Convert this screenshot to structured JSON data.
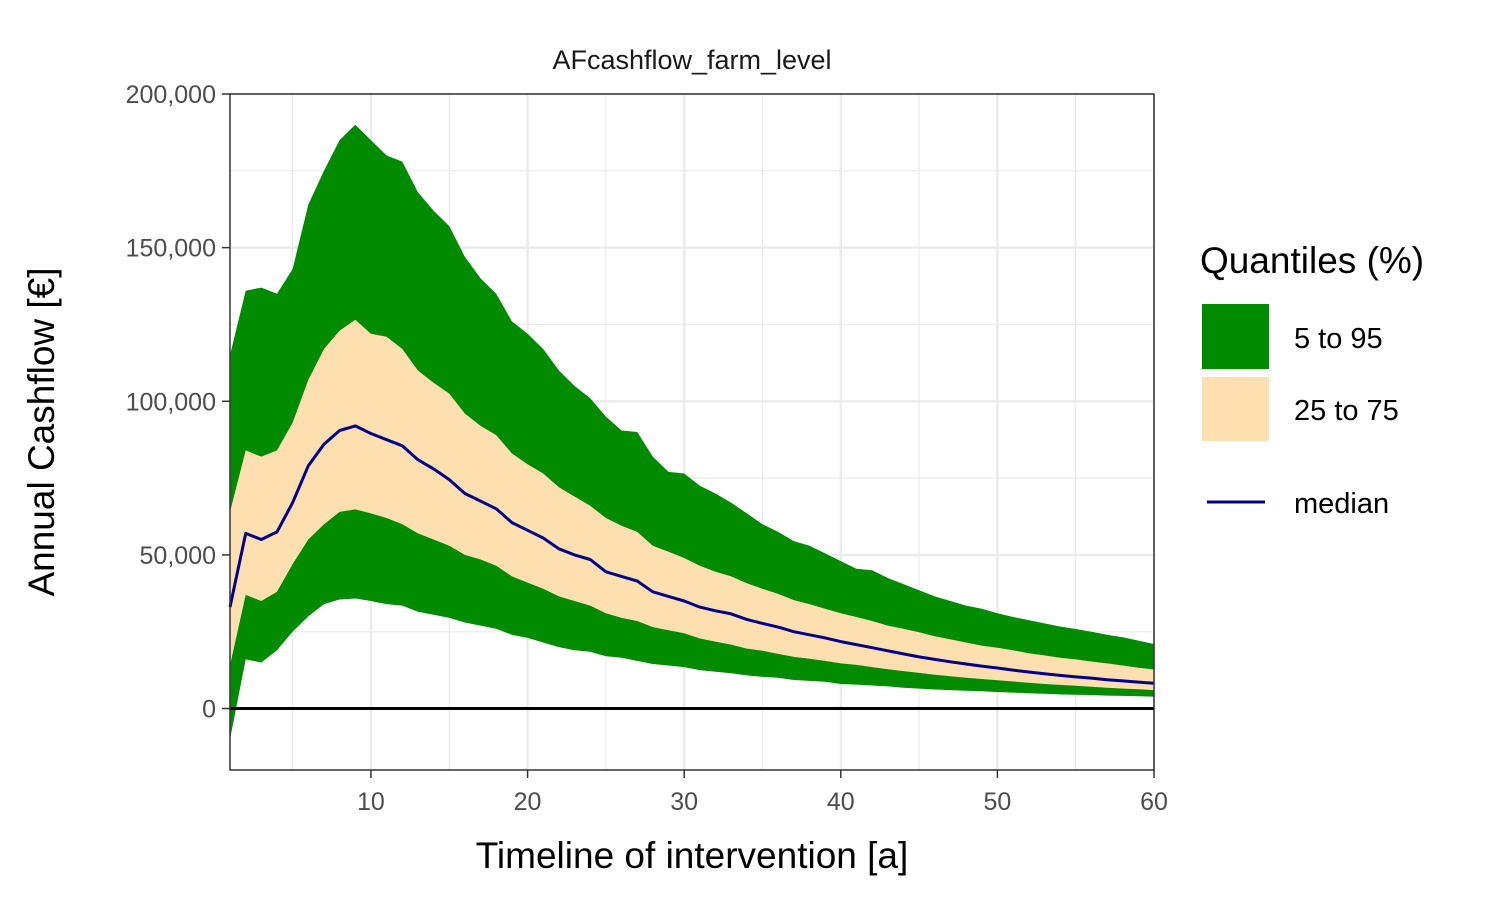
{
  "chart_data": {
    "type": "area",
    "title": "AFcashflow_farm_level",
    "xlabel": "Timeline of intervention [a]",
    "ylabel": "Annual Cashflow [€]",
    "xlim": [
      1,
      60
    ],
    "ylim": [
      -20000,
      200000
    ],
    "x_ticks": [
      10,
      20,
      30,
      40,
      50,
      60
    ],
    "x_tick_labels": [
      "10",
      "20",
      "30",
      "40",
      "50",
      "60"
    ],
    "y_ticks": [
      0,
      50000,
      100000,
      150000,
      200000
    ],
    "y_tick_labels": [
      "0",
      "50,000",
      "100,000",
      "150,000",
      "200,000"
    ],
    "grid": true,
    "reference_line_y": 0,
    "legend": {
      "title": "Quantiles (%)",
      "position": "right",
      "entries": [
        {
          "label": "5 to 95",
          "color": "#008B00",
          "kind": "fill"
        },
        {
          "label": "25 to 75",
          "color": "#FDDFB0",
          "kind": "fill"
        },
        {
          "label": "median",
          "color": "#00008B",
          "kind": "line"
        }
      ]
    },
    "x": [
      1,
      2,
      3,
      4,
      5,
      6,
      7,
      8,
      9,
      10,
      11,
      12,
      13,
      14,
      15,
      16,
      17,
      18,
      19,
      20,
      21,
      22,
      23,
      24,
      25,
      26,
      27,
      28,
      29,
      30,
      31,
      32,
      33,
      34,
      35,
      36,
      37,
      38,
      39,
      40,
      41,
      42,
      43,
      44,
      45,
      46,
      47,
      48,
      49,
      50,
      51,
      52,
      53,
      54,
      55,
      56,
      57,
      58,
      59,
      60
    ],
    "series": [
      {
        "name": "5 to 95",
        "kind": "band",
        "color": "#008B00",
        "low": [
          -10000,
          16000,
          15000,
          19000,
          25000,
          30000,
          34000,
          35500,
          35800,
          35000,
          34000,
          33500,
          31500,
          30500,
          29500,
          28000,
          27000,
          26000,
          24000,
          23000,
          21500,
          20000,
          19000,
          18500,
          17000,
          16500,
          15500,
          14500,
          14000,
          13500,
          12500,
          12000,
          11500,
          10800,
          10300,
          10000,
          9300,
          9000,
          8700,
          8000,
          7800,
          7500,
          7200,
          6800,
          6500,
          6200,
          6000,
          5800,
          5600,
          5400,
          5200,
          5000,
          4800,
          4600,
          4500,
          4400,
          4200,
          4100,
          4000,
          3900
        ],
        "high": [
          115000,
          136000,
          137000,
          135000,
          143000,
          164000,
          175000,
          185000,
          190000,
          185000,
          180000,
          178000,
          168000,
          162000,
          157000,
          147000,
          140000,
          135000,
          126000,
          122000,
          117000,
          110000,
          105000,
          101000,
          95000,
          90500,
          90000,
          82000,
          77000,
          76500,
          72500,
          70000,
          67000,
          63500,
          60000,
          57500,
          54500,
          53000,
          50500,
          48000,
          45500,
          45000,
          42500,
          40500,
          38500,
          36500,
          35000,
          33500,
          32500,
          31000,
          29800,
          28800,
          27700,
          26700,
          25900,
          25000,
          24000,
          23200,
          22100,
          21000
        ]
      },
      {
        "name": "25 to 75",
        "kind": "band",
        "color": "#FDDFB0",
        "low": [
          14000,
          37000,
          35000,
          38000,
          47000,
          55000,
          60000,
          64000,
          64800,
          63500,
          62000,
          60000,
          57000,
          55000,
          53000,
          50000,
          48500,
          46500,
          43000,
          41000,
          39000,
          36500,
          35000,
          33500,
          31000,
          29500,
          28500,
          26500,
          25500,
          24500,
          22800,
          21800,
          20800,
          19500,
          18800,
          17800,
          16800,
          16200,
          15500,
          14700,
          14200,
          13500,
          12800,
          12200,
          11600,
          11000,
          10500,
          10000,
          9600,
          9200,
          8800,
          8400,
          8000,
          7700,
          7400,
          7100,
          6800,
          6500,
          6300,
          6000
        ],
        "high": [
          64000,
          84000,
          82000,
          84000,
          93000,
          107000,
          117000,
          123000,
          126500,
          122000,
          121000,
          117000,
          110000,
          106000,
          102500,
          96000,
          92000,
          89000,
          83000,
          79500,
          76500,
          72000,
          69000,
          66000,
          62000,
          59500,
          57500,
          53000,
          51000,
          49000,
          46500,
          44500,
          43000,
          40800,
          39000,
          37300,
          35300,
          34000,
          32500,
          31000,
          29800,
          28500,
          27000,
          26000,
          24800,
          23500,
          22500,
          21500,
          20500,
          19800,
          19000,
          18000,
          17300,
          16500,
          16000,
          15300,
          14700,
          14000,
          13300,
          12700
        ]
      },
      {
        "name": "median",
        "kind": "line",
        "color": "#00008B",
        "values": [
          33000,
          57000,
          55000,
          57500,
          67000,
          79000,
          86000,
          90500,
          92000,
          89500,
          87500,
          85500,
          81000,
          78000,
          74500,
          70000,
          67500,
          65000,
          60500,
          58000,
          55500,
          52000,
          50000,
          48500,
          44500,
          43000,
          41500,
          38000,
          36500,
          35000,
          33000,
          31800,
          30800,
          29000,
          27700,
          26500,
          25000,
          24000,
          23000,
          21800,
          20800,
          19800,
          18800,
          17800,
          16800,
          16000,
          15200,
          14500,
          13800,
          13200,
          12500,
          11900,
          11300,
          10800,
          10300,
          9900,
          9400,
          9000,
          8600,
          8200
        ]
      }
    ]
  }
}
